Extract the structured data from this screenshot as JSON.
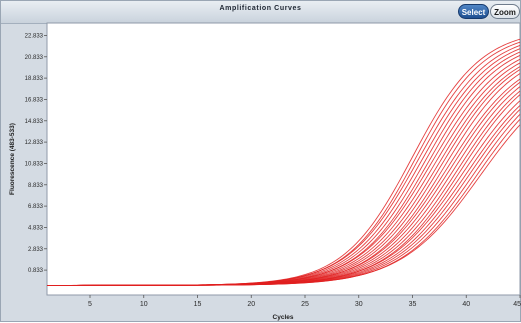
{
  "window": {
    "title": "Amplification Curves",
    "select_label": "Select",
    "zoom_label": "Zoom"
  },
  "chart_data": {
    "type": "line",
    "title": "Amplification Curves",
    "xlabel": "Cycles",
    "ylabel": "Fluorescence (483-533)",
    "xlim": [
      1,
      45
    ],
    "ylim": [
      -1.5,
      24
    ],
    "x_ticks": [
      5,
      10,
      15,
      20,
      25,
      30,
      35,
      40,
      45
    ],
    "y_ticks": [
      0.833,
      2.833,
      4.833,
      6.833,
      8.833,
      10.833,
      12.833,
      14.833,
      16.833,
      18.833,
      20.833,
      22.833
    ],
    "y_tick_labels": [
      "0.833",
      "2.833",
      "4.833",
      "6.833",
      "8.833",
      "10.833",
      "12.833",
      "14.833",
      "16.833",
      "18.833",
      "20.833",
      "22.833"
    ],
    "grid": false,
    "legend": "none",
    "series_color": "#e02020",
    "curve_model": "sigmoid",
    "baseline": -0.6,
    "series": [
      {
        "midpoint": 35.0,
        "plateau": 23.5,
        "slope": 3.2
      },
      {
        "midpoint": 35.3,
        "plateau": 23.3,
        "slope": 3.2
      },
      {
        "midpoint": 35.6,
        "plateau": 23.2,
        "slope": 3.3
      },
      {
        "midpoint": 35.9,
        "plateau": 23.0,
        "slope": 3.3
      },
      {
        "midpoint": 36.2,
        "plateau": 22.8,
        "slope": 3.3
      },
      {
        "midpoint": 36.5,
        "plateau": 22.6,
        "slope": 3.3
      },
      {
        "midpoint": 36.8,
        "plateau": 22.5,
        "slope": 3.4
      },
      {
        "midpoint": 37.1,
        "plateau": 22.3,
        "slope": 3.4
      },
      {
        "midpoint": 37.4,
        "plateau": 22.1,
        "slope": 3.4
      },
      {
        "midpoint": 37.7,
        "plateau": 22.0,
        "slope": 3.4
      },
      {
        "midpoint": 38.0,
        "plateau": 21.8,
        "slope": 3.4
      },
      {
        "midpoint": 38.3,
        "plateau": 21.6,
        "slope": 3.5
      },
      {
        "midpoint": 38.6,
        "plateau": 21.5,
        "slope": 3.5
      },
      {
        "midpoint": 38.9,
        "plateau": 21.3,
        "slope": 3.5
      },
      {
        "midpoint": 39.2,
        "plateau": 21.1,
        "slope": 3.5
      },
      {
        "midpoint": 39.5,
        "plateau": 21.0,
        "slope": 3.5
      },
      {
        "midpoint": 39.8,
        "plateau": 20.8,
        "slope": 3.6
      },
      {
        "midpoint": 40.1,
        "plateau": 20.6,
        "slope": 3.6
      },
      {
        "midpoint": 40.4,
        "plateau": 20.5,
        "slope": 3.6
      },
      {
        "midpoint": 40.7,
        "plateau": 20.3,
        "slope": 3.6
      },
      {
        "midpoint": 41.0,
        "plateau": 20.1,
        "slope": 3.6
      },
      {
        "midpoint": 41.3,
        "plateau": 20.0,
        "slope": 3.7
      }
    ]
  }
}
